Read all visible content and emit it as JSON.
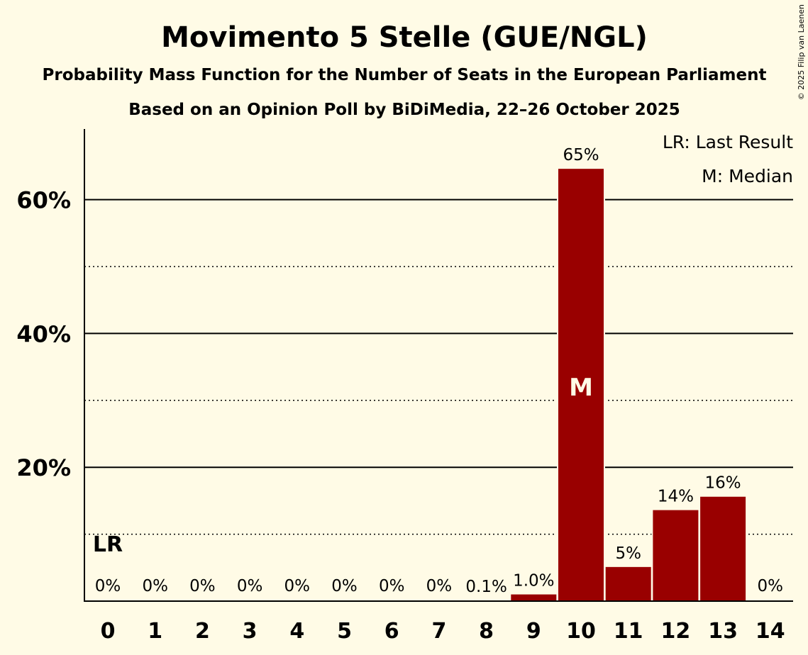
{
  "chart_data": {
    "type": "bar",
    "title": "Movimento 5 Stelle (GUE/NGL)",
    "subtitle": "Probability Mass Function for the Number of Seats in the European Parliament",
    "subtitle2": "Based on an Opinion Poll by BiDiMedia, 22–26 October 2025",
    "copyright": "© 2025 Filip van Laenen",
    "xlabel": "",
    "ylabel": "",
    "ylim": [
      0,
      70
    ],
    "yticks": [
      {
        "value": 20,
        "label": "20%"
      },
      {
        "value": 40,
        "label": "40%"
      },
      {
        "value": 60,
        "label": "60%"
      }
    ],
    "minor_gridlines": [
      10,
      30,
      50
    ],
    "categories": [
      "0",
      "1",
      "2",
      "3",
      "4",
      "5",
      "6",
      "7",
      "8",
      "9",
      "10",
      "11",
      "12",
      "13",
      "14"
    ],
    "values": [
      0,
      0,
      0,
      0,
      0,
      0,
      0,
      0,
      0.1,
      1.0,
      64.6,
      5.1,
      13.6,
      15.6,
      0
    ],
    "value_labels": [
      "0%",
      "0%",
      "0%",
      "0%",
      "0%",
      "0%",
      "0%",
      "0%",
      "0.1%",
      "1.0%",
      "65%",
      "5%",
      "14%",
      "16%",
      "0%"
    ],
    "bar_color": "#990000",
    "background_color": "#fffbe6",
    "last_result": {
      "category": "0",
      "label": "LR"
    },
    "median": {
      "category": "10",
      "label": "M"
    },
    "legend": [
      "LR: Last Result",
      "M: Median"
    ],
    "legend_position": "top-right"
  }
}
